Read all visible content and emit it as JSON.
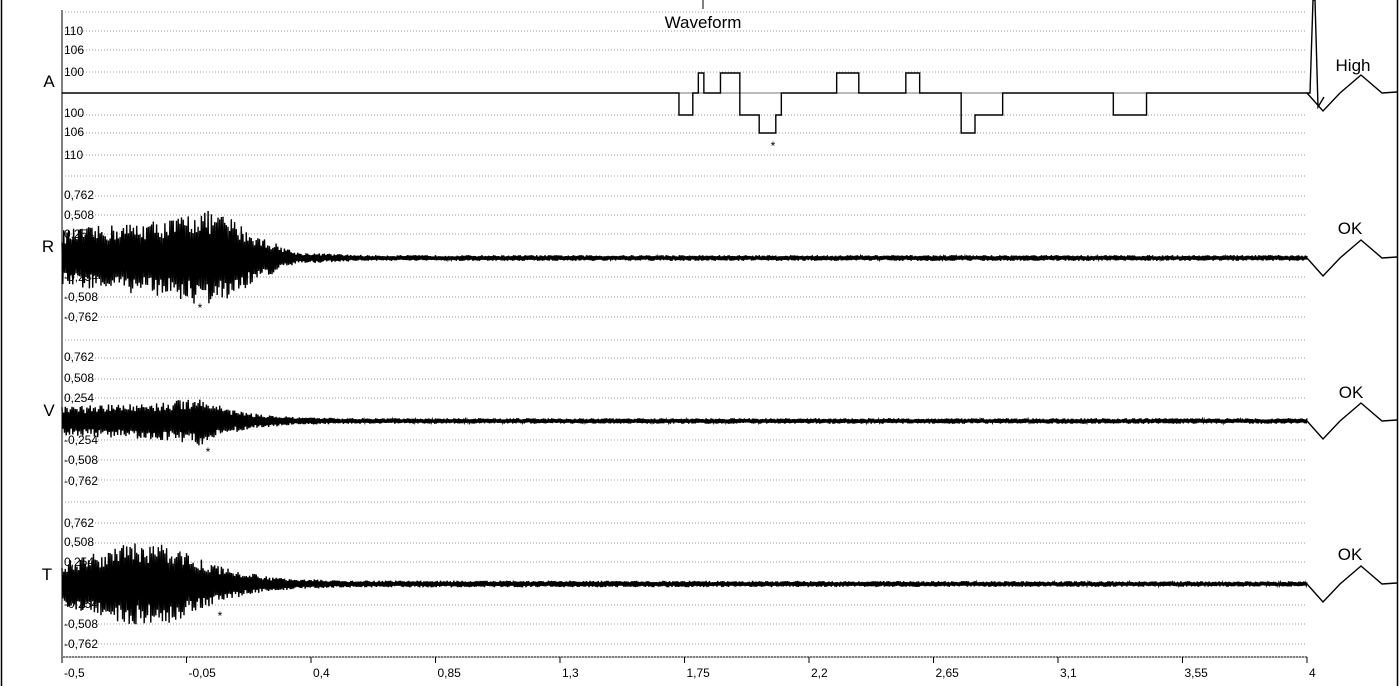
{
  "chart_data": {
    "type": "line",
    "title": "Waveform",
    "x": {
      "tick_labels": [
        "-0,5",
        "-0,05",
        "0,4",
        "0,85",
        "1,3",
        "1,75",
        "2,2",
        "2,65",
        "3,1",
        "3,55",
        "4"
      ],
      "range": [
        -0.5,
        4
      ]
    },
    "grid": true,
    "channels": [
      {
        "label": "A",
        "status": "High",
        "marker": "*",
        "tick_labels": [
          "110",
          "106",
          "100",
          "100",
          "106",
          "110"
        ],
        "segments": [
          {
            "x0": -0.5,
            "x1": 1.73,
            "y": 0
          },
          {
            "x0": 1.73,
            "x1": 1.78,
            "y": -106
          },
          {
            "x0": 1.78,
            "x1": 1.8,
            "y": 0
          },
          {
            "x0": 1.8,
            "x1": 1.82,
            "y": 100
          },
          {
            "x0": 1.82,
            "x1": 1.88,
            "y": 0
          },
          {
            "x0": 1.88,
            "x1": 1.95,
            "y": 100
          },
          {
            "x0": 1.95,
            "x1": 2.02,
            "y": -106
          },
          {
            "x0": 2.02,
            "x1": 2.08,
            "y": -110
          },
          {
            "x0": 2.08,
            "x1": 2.1,
            "y": -106
          },
          {
            "x0": 2.1,
            "x1": 2.3,
            "y": 0
          },
          {
            "x0": 2.3,
            "x1": 2.38,
            "y": 100
          },
          {
            "x0": 2.38,
            "x1": 2.55,
            "y": 0
          },
          {
            "x0": 2.55,
            "x1": 2.6,
            "y": 100
          },
          {
            "x0": 2.6,
            "x1": 2.75,
            "y": 0
          },
          {
            "x0": 2.75,
            "x1": 2.8,
            "y": -110
          },
          {
            "x0": 2.8,
            "x1": 2.9,
            "y": -106
          },
          {
            "x0": 2.9,
            "x1": 3.3,
            "y": 0
          },
          {
            "x0": 3.3,
            "x1": 3.42,
            "y": -106
          },
          {
            "x0": 3.42,
            "x1": 4,
            "y": 0
          }
        ]
      },
      {
        "label": "R",
        "status": "OK",
        "marker": "*",
        "tick_labels": [
          "0,762",
          "0,508",
          "0,254",
          "-0,254",
          "-0,508",
          "-0,762"
        ],
        "envelope": [
          [
            -0.5,
            0.3
          ],
          [
            -0.1,
            0.42
          ],
          [
            0.0,
            0.52
          ],
          [
            0.1,
            0.45
          ],
          [
            0.2,
            0.25
          ],
          [
            0.35,
            0.06
          ],
          [
            0.6,
            0.03
          ],
          [
            4.0,
            0.03
          ]
        ]
      },
      {
        "label": "V",
        "status": "OK",
        "marker": "*",
        "tick_labels": [
          "0,762",
          "0,508",
          "0,254",
          "-0,254",
          "-0,508",
          "-0,762"
        ],
        "envelope": [
          [
            -0.5,
            0.16
          ],
          [
            -0.1,
            0.22
          ],
          [
            0.0,
            0.28
          ],
          [
            0.1,
            0.14
          ],
          [
            0.2,
            0.08
          ],
          [
            0.35,
            0.04
          ],
          [
            0.6,
            0.03
          ],
          [
            4.0,
            0.03
          ]
        ]
      },
      {
        "label": "T",
        "status": "OK",
        "marker": "*",
        "tick_labels": [
          "0,762",
          "0,508",
          "0,254",
          "-0,254",
          "-0,508",
          "-0,762"
        ],
        "envelope": [
          [
            -0.5,
            0.25
          ],
          [
            -0.25,
            0.48
          ],
          [
            -0.1,
            0.45
          ],
          [
            0.0,
            0.3
          ],
          [
            0.1,
            0.18
          ],
          [
            0.25,
            0.08
          ],
          [
            0.5,
            0.04
          ],
          [
            4.0,
            0.03
          ]
        ]
      }
    ]
  }
}
